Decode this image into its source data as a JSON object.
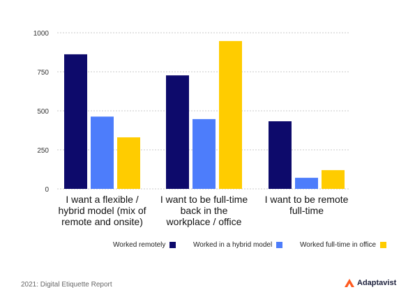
{
  "chart_data": {
    "type": "bar",
    "categories": [
      "I want a flexible / hybrid model (mix of remote and onsite)",
      "I want to be full-time back in the workplace / office",
      "I want to be remote full-time"
    ],
    "category_lines": [
      [
        "I want a flexible /",
        "hybrid model (mix of",
        "remote and onsite)"
      ],
      [
        "I want to be full-time",
        "back in the",
        "workplace / office"
      ],
      [
        "I want to be remote",
        "full-time"
      ]
    ],
    "series": [
      {
        "name": "Worked remotely",
        "color": "#0d0a6b",
        "values": [
          862,
          727,
          433
        ]
      },
      {
        "name": "Worked in a hybrid model",
        "color": "#4d7dfb",
        "values": [
          463,
          447,
          71
        ]
      },
      {
        "name": "Worked full-time in office",
        "color": "#ffcc00",
        "values": [
          330,
          947,
          120
        ]
      }
    ],
    "yticks": [
      0,
      250,
      500,
      750,
      1000
    ],
    "ylim": [
      0,
      1000
    ],
    "grid": true,
    "legend_position": "bottom",
    "title": "",
    "xlabel": "",
    "ylabel": ""
  },
  "footer": {
    "source": "2021: Digital Etiquette Report",
    "brand": "Adaptavist",
    "brand_color": "#ff5a1f"
  }
}
